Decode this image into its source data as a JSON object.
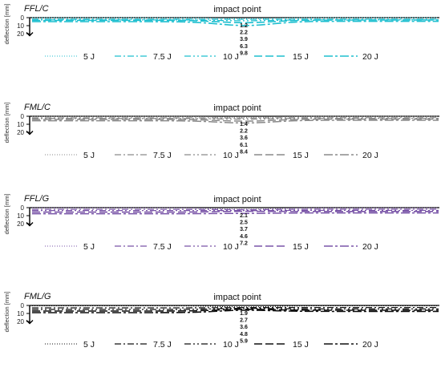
{
  "chart_data": [
    {
      "type": "line",
      "panel": "FFL/C",
      "annotation": "impact point",
      "ylabel": "deflection [mm]",
      "yticks": [
        "0",
        "10",
        "20"
      ],
      "ylim": [
        0,
        20
      ],
      "y_inverted": true,
      "peak_labels": [
        "1.2",
        "2.2",
        "3.9",
        "6.3",
        "9.8"
      ],
      "series": [
        {
          "name": "5 J",
          "peak": 1.2,
          "left": 0.1,
          "right": 0.1,
          "color": "#1fbfcf",
          "dash": "1,2",
          "width": 1.1
        },
        {
          "name": "7.5 J",
          "peak": 2.2,
          "left": 2.0,
          "right": 2.0,
          "color": "#1fbfcf",
          "dash": "8,3,2,3",
          "width": 1.2
        },
        {
          "name": "10 J",
          "peak": 3.9,
          "left": 2.8,
          "right": 2.7,
          "color": "#1fbfcf",
          "dash": "8,3,2,3,2,3",
          "width": 1.3
        },
        {
          "name": "15 J",
          "peak": 6.3,
          "left": 3.4,
          "right": 3.0,
          "color": "#1fbfcf",
          "dash": "10,4",
          "width": 1.6
        },
        {
          "name": "20 J",
          "peak": 9.8,
          "left": 5.0,
          "right": 4.6,
          "color": "#1fbfcf",
          "dash": "11,3,3,3",
          "width": 1.6
        }
      ]
    },
    {
      "type": "line",
      "panel": "FML/C",
      "annotation": "impact point",
      "ylabel": "deflection [mm]",
      "yticks": [
        "0",
        "10",
        "20"
      ],
      "ylim": [
        0,
        20
      ],
      "y_inverted": true,
      "peak_labels": [
        "1.4",
        "2.2",
        "3.6",
        "6.1",
        "8.4"
      ],
      "series": [
        {
          "name": "5 J",
          "peak": 1.4,
          "left": 0.3,
          "right": 0.3,
          "color": "#8a8a8a",
          "dash": "1,2",
          "width": 1.1
        },
        {
          "name": "7.5 J",
          "peak": 2.2,
          "left": 2.0,
          "right": 1.8,
          "color": "#8a8a8a",
          "dash": "8,3,2,3",
          "width": 1.2
        },
        {
          "name": "10 J",
          "peak": 3.6,
          "left": 2.8,
          "right": 2.6,
          "color": "#8a8a8a",
          "dash": "8,3,2,3,2,3",
          "width": 1.3
        },
        {
          "name": "15 J",
          "peak": 6.1,
          "left": 4.0,
          "right": 3.6,
          "color": "#8a8a8a",
          "dash": "10,4",
          "width": 1.5
        },
        {
          "name": "20 J",
          "peak": 8.4,
          "left": 5.6,
          "right": 5.0,
          "color": "#8a8a8a",
          "dash": "11,3,3,3",
          "width": 1.5
        }
      ]
    },
    {
      "type": "line",
      "panel": "FFL/G",
      "annotation": "impact point",
      "ylabel": "deflection [mm]",
      "yticks": [
        "0",
        "10",
        "20"
      ],
      "ylim": [
        0,
        20
      ],
      "y_inverted": true,
      "peak_labels": [
        "2.1",
        "2.5",
        "3.7",
        "4.6",
        "7.2"
      ],
      "series": [
        {
          "name": "5 J",
          "peak": 2.1,
          "left": 0.3,
          "right": 0.3,
          "color": "#7a55a8",
          "dash": "1,2",
          "width": 1.1
        },
        {
          "name": "7.5 J",
          "peak": 2.5,
          "left": 2.2,
          "right": 2.0,
          "color": "#7a55a8",
          "dash": "8,3,2,3",
          "width": 1.2
        },
        {
          "name": "10 J",
          "peak": 3.7,
          "left": 3.6,
          "right": 3.4,
          "color": "#7a55a8",
          "dash": "8,3,2,3,2,3",
          "width": 1.3
        },
        {
          "name": "15 J",
          "peak": 4.6,
          "left": 5.6,
          "right": 4.8,
          "color": "#7a55a8",
          "dash": "10,4",
          "width": 1.6
        },
        {
          "name": "20 J",
          "peak": 7.2,
          "left": 7.6,
          "right": 6.6,
          "color": "#7a55a8",
          "dash": "11,3,3,3",
          "width": 1.5
        }
      ]
    },
    {
      "type": "line",
      "panel": "FML/G",
      "annotation": "impact point",
      "ylabel": "deflection [mm]",
      "yticks": [
        "0",
        "10",
        "20"
      ],
      "ylim": [
        0,
        20
      ],
      "y_inverted": true,
      "peak_labels": [
        "1.9",
        "2.7",
        "3.6",
        "4.8",
        "5.9"
      ],
      "series": [
        {
          "name": "5 J",
          "peak": 1.9,
          "left": 0.4,
          "right": 0.4,
          "color": "#111111",
          "dash": "1,2",
          "width": 1.1
        },
        {
          "name": "7.5 J",
          "peak": 2.7,
          "left": 3.0,
          "right": 2.6,
          "color": "#111111",
          "dash": "8,3,2,3",
          "width": 1.3
        },
        {
          "name": "10 J",
          "peak": 3.6,
          "left": 5.0,
          "right": 4.4,
          "color": "#111111",
          "dash": "8,3,2,3,2,3",
          "width": 1.3
        },
        {
          "name": "15 J",
          "peak": 4.8,
          "left": 7.0,
          "right": 6.0,
          "color": "#111111",
          "dash": "10,4",
          "width": 1.6
        },
        {
          "name": "20 J",
          "peak": 5.9,
          "left": 9.0,
          "right": 7.4,
          "color": "#111111",
          "dash": "11,3,3,3",
          "width": 1.6
        }
      ]
    }
  ]
}
